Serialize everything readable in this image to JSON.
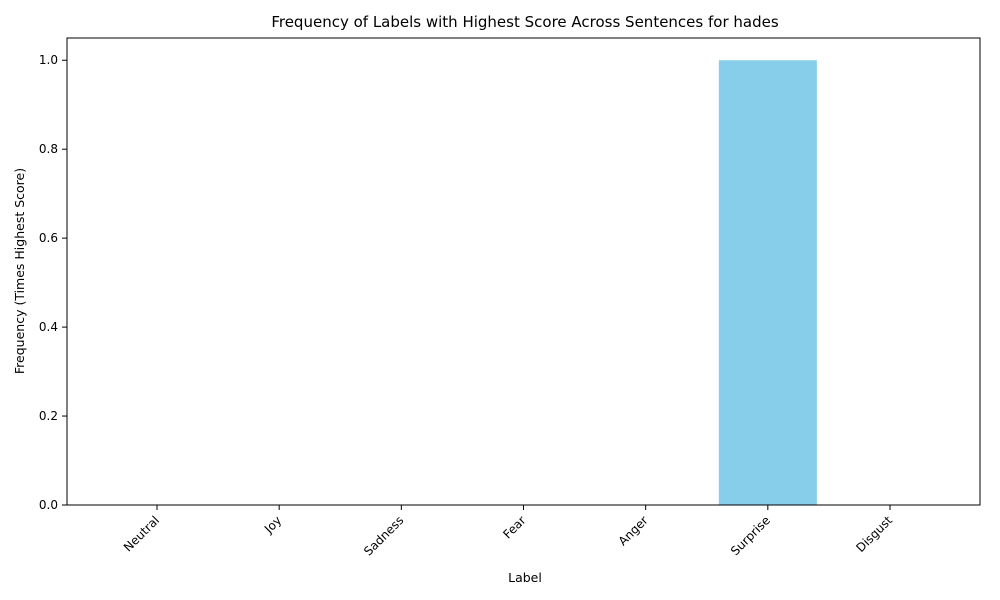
{
  "chart_data": {
    "type": "bar",
    "title": "Frequency of Labels with Highest Score Across Sentences for hades",
    "xlabel": "Label",
    "ylabel": "Frequency (Times Highest Score)",
    "categories": [
      "Neutral",
      "Joy",
      "Sadness",
      "Fear",
      "Anger",
      "Surprise",
      "Disgust"
    ],
    "values": [
      0,
      0,
      0,
      0,
      0,
      1,
      0
    ],
    "ylim": [
      0,
      1.05
    ],
    "yticks": [
      "0.0",
      "0.2",
      "0.4",
      "0.6",
      "0.8",
      "1.0"
    ],
    "bar_color": "#87ceeb",
    "grid": false,
    "legend": "none"
  }
}
